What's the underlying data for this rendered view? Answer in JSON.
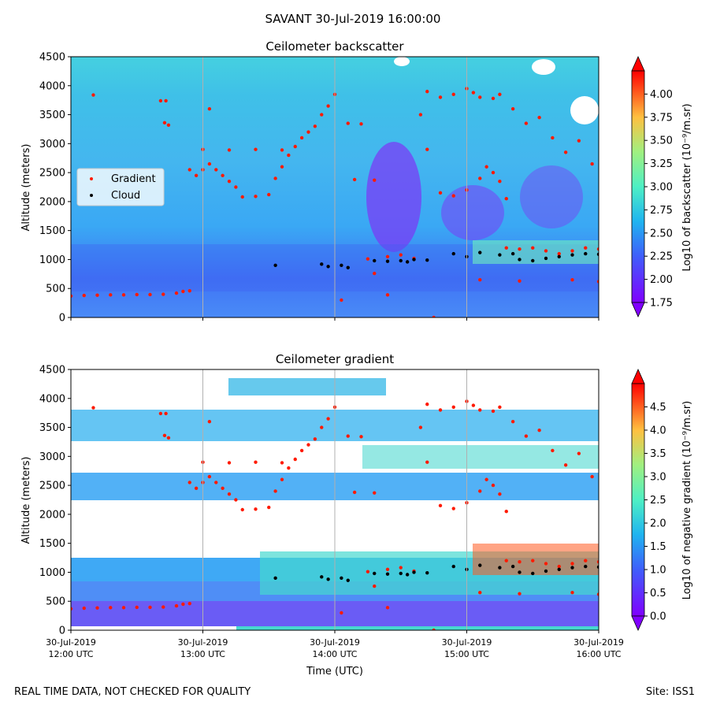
{
  "figure_title": "SAVANT 30-Jul-2019 16:00:00",
  "footer": {
    "note": "REAL TIME DATA, NOT CHECKED FOR QUALITY",
    "site": "Site: ISS1"
  },
  "colors": {
    "background_field": "#3fa9f5",
    "gradient_points": "#ff1a00",
    "cloud_points": "#000000",
    "grid": "#b0b0b0"
  },
  "chart_data": [
    {
      "type": "heatmap",
      "title": "Ceilometer backscatter",
      "ylabel": "Altitude (meters)",
      "ylim": [
        0,
        4500
      ],
      "y_ticks": [
        "0",
        "500",
        "1000",
        "1500",
        "2000",
        "2500",
        "3000",
        "3500",
        "4000",
        "4500"
      ],
      "x_range": [
        "30-Jul-2019 12:00 UTC",
        "30-Jul-2019 16:00 UTC"
      ],
      "colorbar": {
        "label": "Log10 of backscatter (10⁻⁹/m.sr)",
        "range": [
          1.75,
          4.25
        ],
        "ticks": [
          "1.75",
          "2.00",
          "2.25",
          "2.50",
          "2.75",
          "3.00",
          "3.25",
          "3.50",
          "3.75",
          "4.00"
        ]
      },
      "legend": {
        "position": "center-left",
        "entries": [
          "Gradient",
          "Cloud"
        ]
      },
      "series": [
        {
          "name": "Gradient",
          "points": [
            [
              0.0,
              370
            ],
            [
              0.1,
              380
            ],
            [
              0.2,
              385
            ],
            [
              0.3,
              390
            ],
            [
              0.4,
              390
            ],
            [
              0.5,
              395
            ],
            [
              0.6,
              395
            ],
            [
              0.7,
              400
            ],
            [
              0.8,
              420
            ],
            [
              0.85,
              450
            ],
            [
              0.9,
              460
            ],
            [
              0.17,
              3840
            ],
            [
              0.68,
              3740
            ],
            [
              0.72,
              3740
            ],
            [
              0.71,
              3360
            ],
            [
              0.74,
              3320
            ],
            [
              0.9,
              2550
            ],
            [
              0.95,
              2450
            ],
            [
              1.0,
              2550
            ],
            [
              1.05,
              2650
            ],
            [
              1.1,
              2550
            ],
            [
              1.15,
              2450
            ],
            [
              1.2,
              2350
            ],
            [
              1.25,
              2250
            ],
            [
              1.3,
              2080
            ],
            [
              1.4,
              2090
            ],
            [
              1.5,
              2120
            ],
            [
              1.55,
              2400
            ],
            [
              1.6,
              2600
            ],
            [
              1.65,
              2800
            ],
            [
              1.7,
              2950
            ],
            [
              1.75,
              3100
            ],
            [
              1.8,
              3200
            ],
            [
              1.85,
              3300
            ],
            [
              1.9,
              3500
            ],
            [
              1.95,
              3650
            ],
            [
              2.0,
              3850
            ],
            [
              1.0,
              2900
            ],
            [
              1.2,
              2890
            ],
            [
              1.4,
              2900
            ],
            [
              1.6,
              2890
            ],
            [
              1.05,
              3600
            ],
            [
              2.1,
              3350
            ],
            [
              2.2,
              3340
            ],
            [
              2.15,
              2380
            ],
            [
              2.3,
              2370
            ],
            [
              2.25,
              1010
            ],
            [
              2.3,
              760
            ],
            [
              2.4,
              1050
            ],
            [
              2.5,
              1080
            ],
            [
              2.6,
              1020
            ],
            [
              2.05,
              300
            ],
            [
              2.4,
              390
            ],
            [
              2.75,
              0
            ],
            [
              2.7,
              3900
            ],
            [
              2.8,
              3800
            ],
            [
              2.9,
              3850
            ],
            [
              3.0,
              3950
            ],
            [
              3.05,
              3880
            ],
            [
              3.1,
              3800
            ],
            [
              3.2,
              3780
            ],
            [
              3.25,
              3850
            ],
            [
              2.7,
              2900
            ],
            [
              2.65,
              3500
            ],
            [
              2.8,
              2150
            ],
            [
              2.9,
              2100
            ],
            [
              3.0,
              2200
            ],
            [
              3.1,
              2400
            ],
            [
              3.15,
              2600
            ],
            [
              3.2,
              2500
            ],
            [
              3.25,
              2350
            ],
            [
              3.3,
              2050
            ],
            [
              3.1,
              650
            ],
            [
              3.4,
              630
            ],
            [
              3.3,
              1200
            ],
            [
              3.4,
              1180
            ],
            [
              3.5,
              1200
            ],
            [
              3.6,
              1150
            ],
            [
              3.7,
              1100
            ],
            [
              3.8,
              1150
            ],
            [
              3.9,
              1200
            ],
            [
              4.0,
              1180
            ],
            [
              3.35,
              3600
            ],
            [
              3.45,
              3350
            ],
            [
              3.55,
              3450
            ],
            [
              3.65,
              3100
            ],
            [
              3.75,
              2850
            ],
            [
              3.85,
              3050
            ],
            [
              3.95,
              2650
            ],
            [
              4.0,
              620
            ],
            [
              3.8,
              650
            ]
          ]
        },
        {
          "name": "Cloud",
          "points": [
            [
              1.55,
              900
            ],
            [
              1.9,
              920
            ],
            [
              1.95,
              880
            ],
            [
              2.05,
              900
            ],
            [
              2.1,
              860
            ],
            [
              2.3,
              980
            ],
            [
              2.4,
              970
            ],
            [
              2.5,
              980
            ],
            [
              2.55,
              960
            ],
            [
              2.6,
              1000
            ],
            [
              2.7,
              990
            ],
            [
              2.9,
              1100
            ],
            [
              3.0,
              1050
            ],
            [
              3.1,
              1120
            ],
            [
              3.25,
              1080
            ],
            [
              3.35,
              1100
            ],
            [
              3.4,
              1000
            ],
            [
              3.5,
              980
            ],
            [
              3.6,
              1020
            ],
            [
              3.7,
              1050
            ],
            [
              3.8,
              1080
            ],
            [
              3.9,
              1100
            ],
            [
              4.0,
              1090
            ]
          ]
        }
      ]
    },
    {
      "type": "heatmap",
      "title": "Ceilometer gradient",
      "ylabel": "Altitude (meters)",
      "xlabel": "Time (UTC)",
      "ylim": [
        0,
        4500
      ],
      "y_ticks": [
        "0",
        "500",
        "1000",
        "1500",
        "2000",
        "2500",
        "3000",
        "3500",
        "4000",
        "4500"
      ],
      "x_ticks": [
        {
          "date": "30-Jul-2019",
          "time": "12:00 UTC"
        },
        {
          "date": "30-Jul-2019",
          "time": "13:00 UTC"
        },
        {
          "date": "30-Jul-2019",
          "time": "14:00 UTC"
        },
        {
          "date": "30-Jul-2019",
          "time": "15:00 UTC"
        },
        {
          "date": "30-Jul-2019",
          "time": "16:00 UTC"
        }
      ],
      "colorbar": {
        "label": "Log10 of negative gradient (10⁻⁹/m.sr)",
        "range": [
          0.0,
          5.0
        ],
        "ticks": [
          "0.0",
          "0.5",
          "1.0",
          "1.5",
          "2.0",
          "2.5",
          "3.0",
          "3.5",
          "4.0",
          "4.5"
        ]
      },
      "series": [
        {
          "name": "Gradient",
          "points": "same as backscatter panel"
        },
        {
          "name": "Cloud",
          "points": "same as backscatter panel"
        }
      ]
    }
  ]
}
